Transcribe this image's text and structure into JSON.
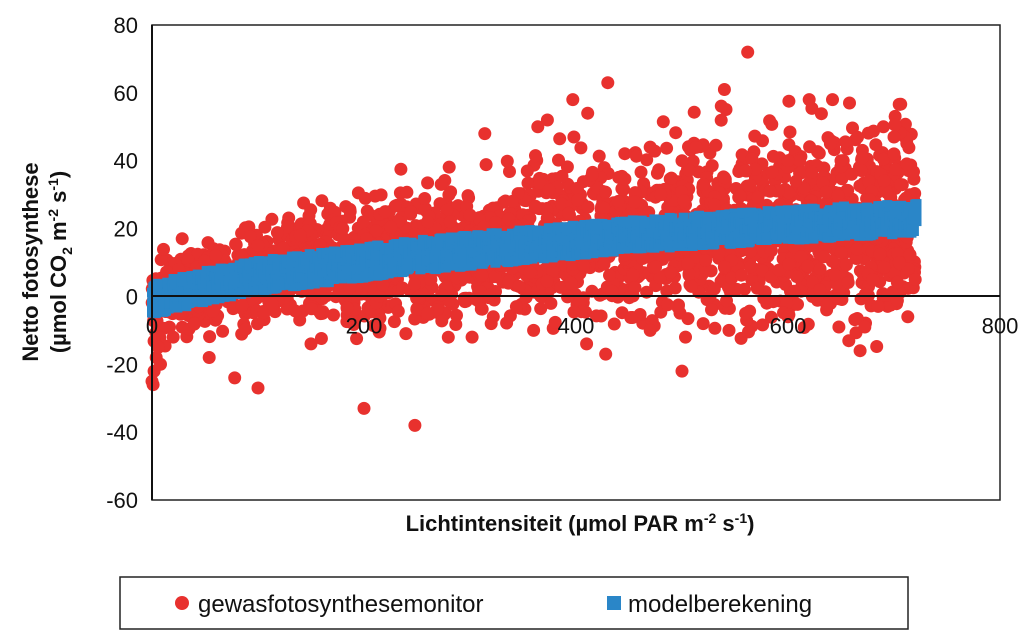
{
  "chart_data": {
    "type": "scatter",
    "title": "",
    "xlabel": {
      "main": "Lichtintensiteit (µmol PAR m",
      "sup1": "-2",
      "mid": " s",
      "sup2": "-1",
      "end": ")"
    },
    "ylabel": {
      "line1": "Netto fotosynthese",
      "line2_a": "(µmol CO",
      "line2_sub": "2",
      "line2_b": " m",
      "line2_sup1": "-2",
      "line2_c": " s",
      "line2_sup2": "-1",
      "line2_d": ")"
    },
    "xlim": [
      0,
      800
    ],
    "ylim": [
      -60,
      80
    ],
    "xticks": [
      0,
      200,
      400,
      600,
      800
    ],
    "yticks": [
      -60,
      -40,
      -20,
      0,
      20,
      40,
      60,
      80
    ],
    "grid": false,
    "legend_position": "bottom",
    "series": [
      {
        "name": "gewasfotosynthesemonitor",
        "marker": "circle",
        "color": "#e8312e",
        "x_range": [
          0,
          720
        ],
        "points": [
          [
            562,
            72
          ],
          [
            430,
            63
          ],
          [
            397,
            58
          ],
          [
            411,
            54
          ],
          [
            373,
            52
          ],
          [
            364,
            50
          ],
          [
            398,
            47
          ],
          [
            314,
            48
          ],
          [
            620,
            58
          ],
          [
            642,
            58
          ],
          [
            658,
            57
          ],
          [
            470,
            44
          ],
          [
            540,
            61
          ],
          [
            690,
            50
          ],
          [
            700,
            47
          ],
          [
            500,
            40
          ],
          [
            540,
            35
          ],
          [
            600,
            38
          ],
          [
            660,
            36
          ],
          [
            700,
            42
          ],
          [
            0,
            -25
          ],
          [
            2,
            -22
          ],
          [
            1,
            -26
          ],
          [
            4,
            -18
          ],
          [
            6,
            -15
          ],
          [
            8,
            -20
          ],
          [
            200,
            -33
          ],
          [
            248,
            -38
          ],
          [
            428,
            -17
          ],
          [
            410,
            -14
          ],
          [
            500,
            -22
          ],
          [
            668,
            -16
          ],
          [
            713,
            -6
          ],
          [
            648,
            -9
          ],
          [
            600,
            -6
          ],
          [
            360,
            -10
          ],
          [
            302,
            -12
          ],
          [
            54,
            -18
          ],
          [
            78,
            -24
          ],
          [
            100,
            -27
          ],
          [
            20,
            -12
          ],
          [
            40,
            -8
          ],
          [
            150,
            -14
          ],
          [
            260,
            -5
          ],
          [
            320,
            -8
          ],
          [
            470,
            -10
          ],
          [
            520,
            -8
          ],
          [
            560,
            -5
          ],
          [
            580,
            -2
          ],
          [
            630,
            2
          ],
          [
            680,
            5
          ],
          [
            705,
            10
          ],
          [
            720,
            5
          ],
          [
            440,
            28
          ],
          [
            480,
            30
          ],
          [
            520,
            33
          ],
          [
            560,
            37
          ],
          [
            600,
            40
          ],
          [
            640,
            45
          ],
          [
            650,
            40
          ],
          [
            340,
            28
          ],
          [
            300,
            24
          ],
          [
            260,
            22
          ],
          [
            220,
            25
          ],
          [
            180,
            20
          ],
          [
            140,
            18
          ],
          [
            100,
            15
          ],
          [
            60,
            12
          ]
        ]
      },
      {
        "name": "modelberekening",
        "marker": "square",
        "color": "#2a86c8",
        "points": [
          [
            0,
            -1
          ],
          [
            50,
            3
          ],
          [
            100,
            6
          ],
          [
            150,
            8
          ],
          [
            200,
            10
          ],
          [
            250,
            12
          ],
          [
            300,
            13.5
          ],
          [
            350,
            15
          ],
          [
            400,
            16.5
          ],
          [
            450,
            18
          ],
          [
            500,
            19
          ],
          [
            550,
            20
          ],
          [
            600,
            21
          ],
          [
            650,
            22
          ],
          [
            700,
            22.5
          ],
          [
            720,
            23
          ]
        ]
      }
    ]
  }
}
